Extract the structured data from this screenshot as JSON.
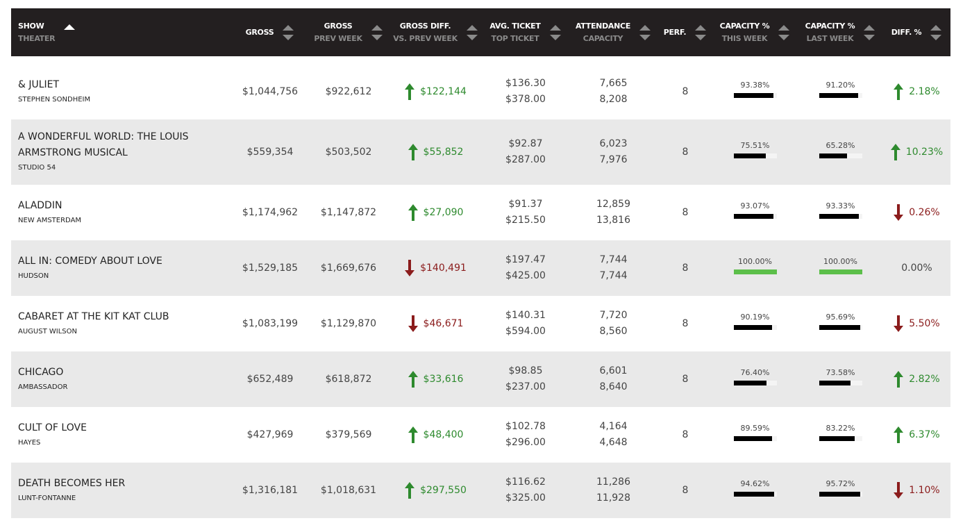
{
  "table": {
    "columns": [
      {
        "title": "SHOW",
        "subtitle": "THEATER"
      },
      {
        "title": "GROSS"
      },
      {
        "title": "GROSS",
        "subtitle": "PREV WEEK"
      },
      {
        "title": "GROSS DIFF.",
        "subtitle": "VS. PREV WEEK"
      },
      {
        "title": "AVG. TICKET",
        "subtitle": "TOP TICKET"
      },
      {
        "title": "ATTENDANCE",
        "subtitle": "CAPACITY"
      },
      {
        "title": "PERF."
      },
      {
        "title": "CAPACITY %",
        "subtitle": "THIS WEEK"
      },
      {
        "title": "CAPACITY %",
        "subtitle": "LAST WEEK"
      },
      {
        "title": "DIFF. %"
      }
    ],
    "rows": [
      {
        "show": "& JULIET",
        "theater": "STEPHEN SONDHEIM",
        "gross": "$1,044,756",
        "gross_prev_week": "$922,612",
        "gross_diff": "$122,144",
        "gross_diff_trend": "up",
        "avg_ticket": "$136.30",
        "top_ticket": "$378.00",
        "attendance": "7,665",
        "capacity": "8,208",
        "perf": 8,
        "capacity_this_week": "93.38%",
        "capacity_last_week": "91.20%",
        "diff_pct": "2.18%",
        "diff_pct_trend": "up"
      },
      {
        "show": "A WONDERFUL WORLD: THE LOUIS ARMSTRONG MUSICAL",
        "theater": "STUDIO 54",
        "gross": "$559,354",
        "gross_prev_week": "$503,502",
        "gross_diff": "$55,852",
        "gross_diff_trend": "up",
        "avg_ticket": "$92.87",
        "top_ticket": "$287.00",
        "attendance": "6,023",
        "capacity": "7,976",
        "perf": 8,
        "capacity_this_week": "75.51%",
        "capacity_last_week": "65.28%",
        "diff_pct": "10.23%",
        "diff_pct_trend": "up"
      },
      {
        "show": "ALADDIN",
        "theater": "NEW AMSTERDAM",
        "gross": "$1,174,962",
        "gross_prev_week": "$1,147,872",
        "gross_diff": "$27,090",
        "gross_diff_trend": "up",
        "avg_ticket": "$91.37",
        "top_ticket": "$215.50",
        "attendance": "12,859",
        "capacity": "13,816",
        "perf": 8,
        "capacity_this_week": "93.07%",
        "capacity_last_week": "93.33%",
        "diff_pct": "0.26%",
        "diff_pct_trend": "down"
      },
      {
        "show": "ALL IN: COMEDY ABOUT LOVE",
        "theater": "HUDSON",
        "gross": "$1,529,185",
        "gross_prev_week": "$1,669,676",
        "gross_diff": "$140,491",
        "gross_diff_trend": "down",
        "avg_ticket": "$197.47",
        "top_ticket": "$425.00",
        "attendance": "7,744",
        "capacity": "7,744",
        "perf": 8,
        "capacity_this_week": "100.00%",
        "capacity_last_week": "100.00%",
        "diff_pct": "0.00%",
        "diff_pct_trend": "none"
      },
      {
        "show": "CABARET AT THE KIT KAT CLUB",
        "theater": "AUGUST WILSON",
        "gross": "$1,083,199",
        "gross_prev_week": "$1,129,870",
        "gross_diff": "$46,671",
        "gross_diff_trend": "down",
        "avg_ticket": "$140.31",
        "top_ticket": "$594.00",
        "attendance": "7,720",
        "capacity": "8,560",
        "perf": 8,
        "capacity_this_week": "90.19%",
        "capacity_last_week": "95.69%",
        "diff_pct": "5.50%",
        "diff_pct_trend": "down"
      },
      {
        "show": "CHICAGO",
        "theater": "AMBASSADOR",
        "gross": "$652,489",
        "gross_prev_week": "$618,872",
        "gross_diff": "$33,616",
        "gross_diff_trend": "up",
        "avg_ticket": "$98.85",
        "top_ticket": "$237.00",
        "attendance": "6,601",
        "capacity": "8,640",
        "perf": 8,
        "capacity_this_week": "76.40%",
        "capacity_last_week": "73.58%",
        "diff_pct": "2.82%",
        "diff_pct_trend": "up"
      },
      {
        "show": "CULT OF LOVE",
        "theater": "HAYES",
        "gross": "$427,969",
        "gross_prev_week": "$379,569",
        "gross_diff": "$48,400",
        "gross_diff_trend": "up",
        "avg_ticket": "$102.78",
        "top_ticket": "$296.00",
        "attendance": "4,164",
        "capacity": "4,648",
        "perf": 8,
        "capacity_this_week": "89.59%",
        "capacity_last_week": "83.22%",
        "diff_pct": "6.37%",
        "diff_pct_trend": "up"
      },
      {
        "show": "DEATH BECOMES HER",
        "theater": "LUNT-FONTANNE",
        "gross": "$1,316,181",
        "gross_prev_week": "$1,018,631",
        "gross_diff": "$297,550",
        "gross_diff_trend": "up",
        "avg_ticket": "$116.62",
        "top_ticket": "$325.00",
        "attendance": "11,286",
        "capacity": "11,928",
        "perf": 8,
        "capacity_this_week": "94.62%",
        "capacity_last_week": "95.72%",
        "diff_pct": "1.10%",
        "diff_pct_trend": "down"
      }
    ]
  }
}
